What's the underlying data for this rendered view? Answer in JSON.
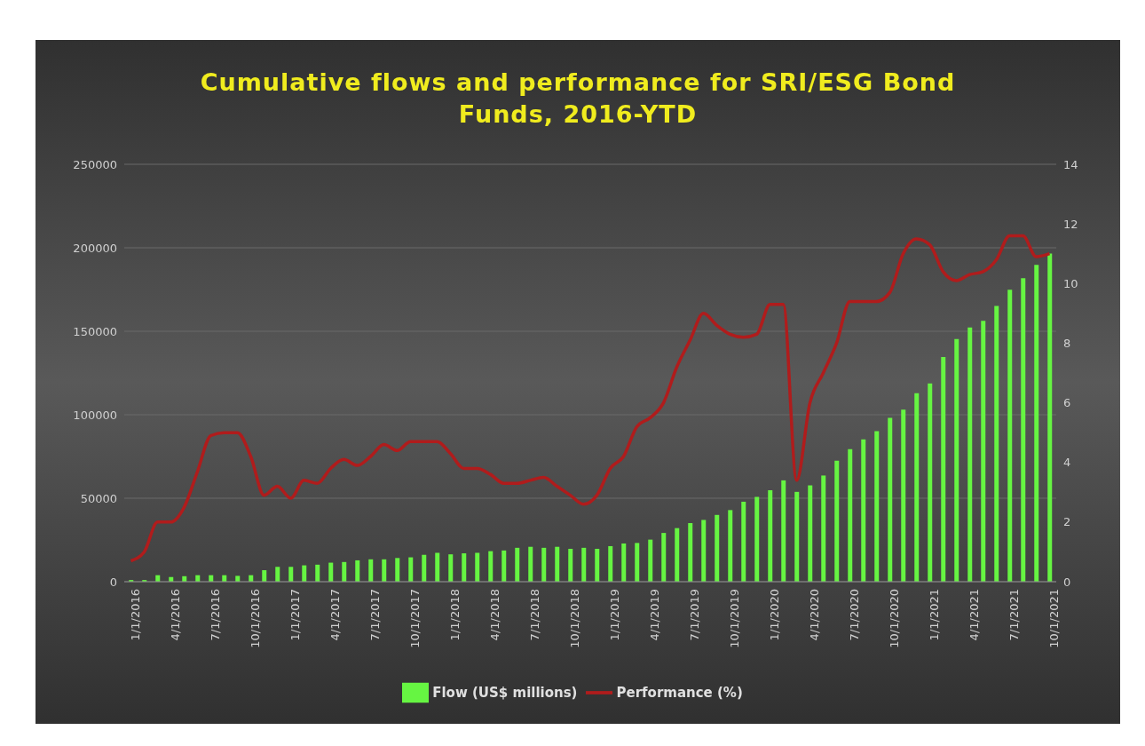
{
  "chart_data": {
    "type": "bar",
    "title": "Cumulative flows and performance for SRI/ESG Bond Funds, 2016-YTD",
    "categories": [
      "1/1/2016",
      null,
      null,
      "4/1/2016",
      null,
      null,
      "7/1/2016",
      null,
      null,
      "10/1/2016",
      null,
      null,
      "1/1/2017",
      null,
      null,
      "4/1/2017",
      null,
      null,
      "7/1/2017",
      null,
      null,
      "10/1/2017",
      null,
      null,
      "1/1/2018",
      null,
      null,
      "4/1/2018",
      null,
      null,
      "7/1/2018",
      null,
      null,
      "10/1/2018",
      null,
      null,
      "1/1/2019",
      null,
      null,
      "4/1/2019",
      null,
      null,
      "7/1/2019",
      null,
      null,
      "10/1/2019",
      null,
      null,
      "1/1/2020",
      null,
      null,
      "4/1/2020",
      null,
      null,
      "7/1/2020",
      null,
      null,
      "10/1/2020",
      null,
      null,
      "1/1/2021",
      null,
      null,
      "4/1/2021",
      null,
      null,
      "7/1/2021",
      null,
      null,
      "10/1/2021"
    ],
    "series": [
      {
        "name": "Flow (US$ millions)",
        "color": "#66f542",
        "values": [
          1000,
          1000,
          3900,
          2800,
          3300,
          3900,
          3900,
          3900,
          3500,
          3900,
          6900,
          8900,
          8900,
          9800,
          10200,
          11400,
          11800,
          12800,
          13400,
          13400,
          14200,
          14600,
          16100,
          17300,
          16400,
          17000,
          17300,
          18300,
          18700,
          20300,
          20900,
          20300,
          20900,
          19700,
          20300,
          19700,
          21300,
          22900,
          23200,
          25200,
          29200,
          32100,
          35100,
          37000,
          40000,
          42900,
          47900,
          50800,
          54800,
          60700,
          53800,
          57700,
          63600,
          72500,
          79400,
          85300,
          90200,
          98100,
          103000,
          112900,
          118800,
          134600,
          145400,
          152300,
          156200,
          165100,
          174900,
          181800,
          189700,
          196600
        ]
      },
      {
        "name": "Performance (%)",
        "type": "line",
        "axis": "y2",
        "color": "#b01c1c",
        "values": [
          0.7,
          1.0,
          2.0,
          2.0,
          2.5,
          3.7,
          4.9,
          5.0,
          5.0,
          4.2,
          2.9,
          3.2,
          2.8,
          3.4,
          3.3,
          3.8,
          4.1,
          3.9,
          4.2,
          4.6,
          4.4,
          4.7,
          4.7,
          4.7,
          4.3,
          3.8,
          3.8,
          3.6,
          3.3,
          3.3,
          3.4,
          3.5,
          3.2,
          2.9,
          2.6,
          2.9,
          3.8,
          4.2,
          5.2,
          5.5,
          6.0,
          7.2,
          8.1,
          9.0,
          8.6,
          8.3,
          8.2,
          8.3,
          9.3,
          9.3,
          3.4,
          6.0,
          7.0,
          8.0,
          9.4,
          9.4,
          9.4,
          9.7,
          11.0,
          11.5,
          11.3,
          10.4,
          10.1,
          10.3,
          10.4,
          10.8,
          11.6,
          11.6,
          10.9,
          11.0
        ]
      }
    ],
    "ylim": [
      0,
      250000
    ],
    "yticks": [
      0,
      50000,
      100000,
      150000,
      200000,
      250000
    ],
    "y2lim": [
      0,
      14
    ],
    "y2ticks": [
      0,
      2,
      4,
      6,
      8,
      10,
      12,
      14
    ],
    "grid": "y",
    "legend": "bottom",
    "marker": "none",
    "line_style": "solid"
  }
}
